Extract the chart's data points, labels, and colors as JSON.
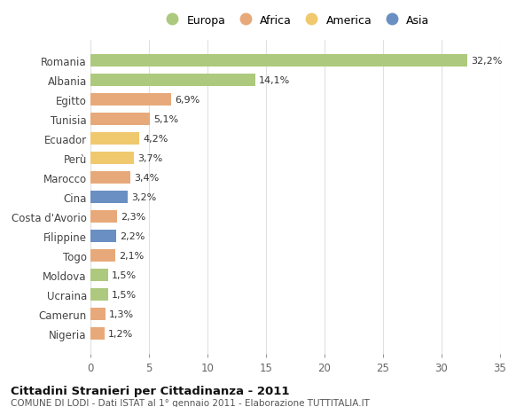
{
  "categories": [
    "Romania",
    "Albania",
    "Egitto",
    "Tunisia",
    "Ecuador",
    "Perù",
    "Marocco",
    "Cina",
    "Costa d'Avorio",
    "Filippine",
    "Togo",
    "Moldova",
    "Ucraina",
    "Camerun",
    "Nigeria"
  ],
  "values": [
    32.2,
    14.1,
    6.9,
    5.1,
    4.2,
    3.7,
    3.4,
    3.2,
    2.3,
    2.2,
    2.1,
    1.5,
    1.5,
    1.3,
    1.2
  ],
  "labels": [
    "32,2%",
    "14,1%",
    "6,9%",
    "5,1%",
    "4,2%",
    "3,7%",
    "3,4%",
    "3,2%",
    "2,3%",
    "2,2%",
    "2,1%",
    "1,5%",
    "1,5%",
    "1,3%",
    "1,2%"
  ],
  "colors": [
    "#adc97d",
    "#adc97d",
    "#e8a97a",
    "#e8a97a",
    "#f0c96e",
    "#f0c96e",
    "#e8a97a",
    "#6a8fc2",
    "#e8a97a",
    "#6a8fc2",
    "#e8a97a",
    "#adc97d",
    "#adc97d",
    "#e8a97a",
    "#e8a97a"
  ],
  "legend_labels": [
    "Europa",
    "Africa",
    "America",
    "Asia"
  ],
  "legend_colors": [
    "#adc97d",
    "#e8a97a",
    "#f0c96e",
    "#6a8fc2"
  ],
  "title": "Cittadini Stranieri per Cittadinanza - 2011",
  "subtitle": "COMUNE DI LODI - Dati ISTAT al 1° gennaio 2011 - Elaborazione TUTTITALIA.IT",
  "xlim": [
    0,
    35
  ],
  "xticks": [
    0,
    5,
    10,
    15,
    20,
    25,
    30,
    35
  ],
  "background_color": "#ffffff",
  "plot_background": "#ffffff",
  "grid_color": "#e0e0e0"
}
